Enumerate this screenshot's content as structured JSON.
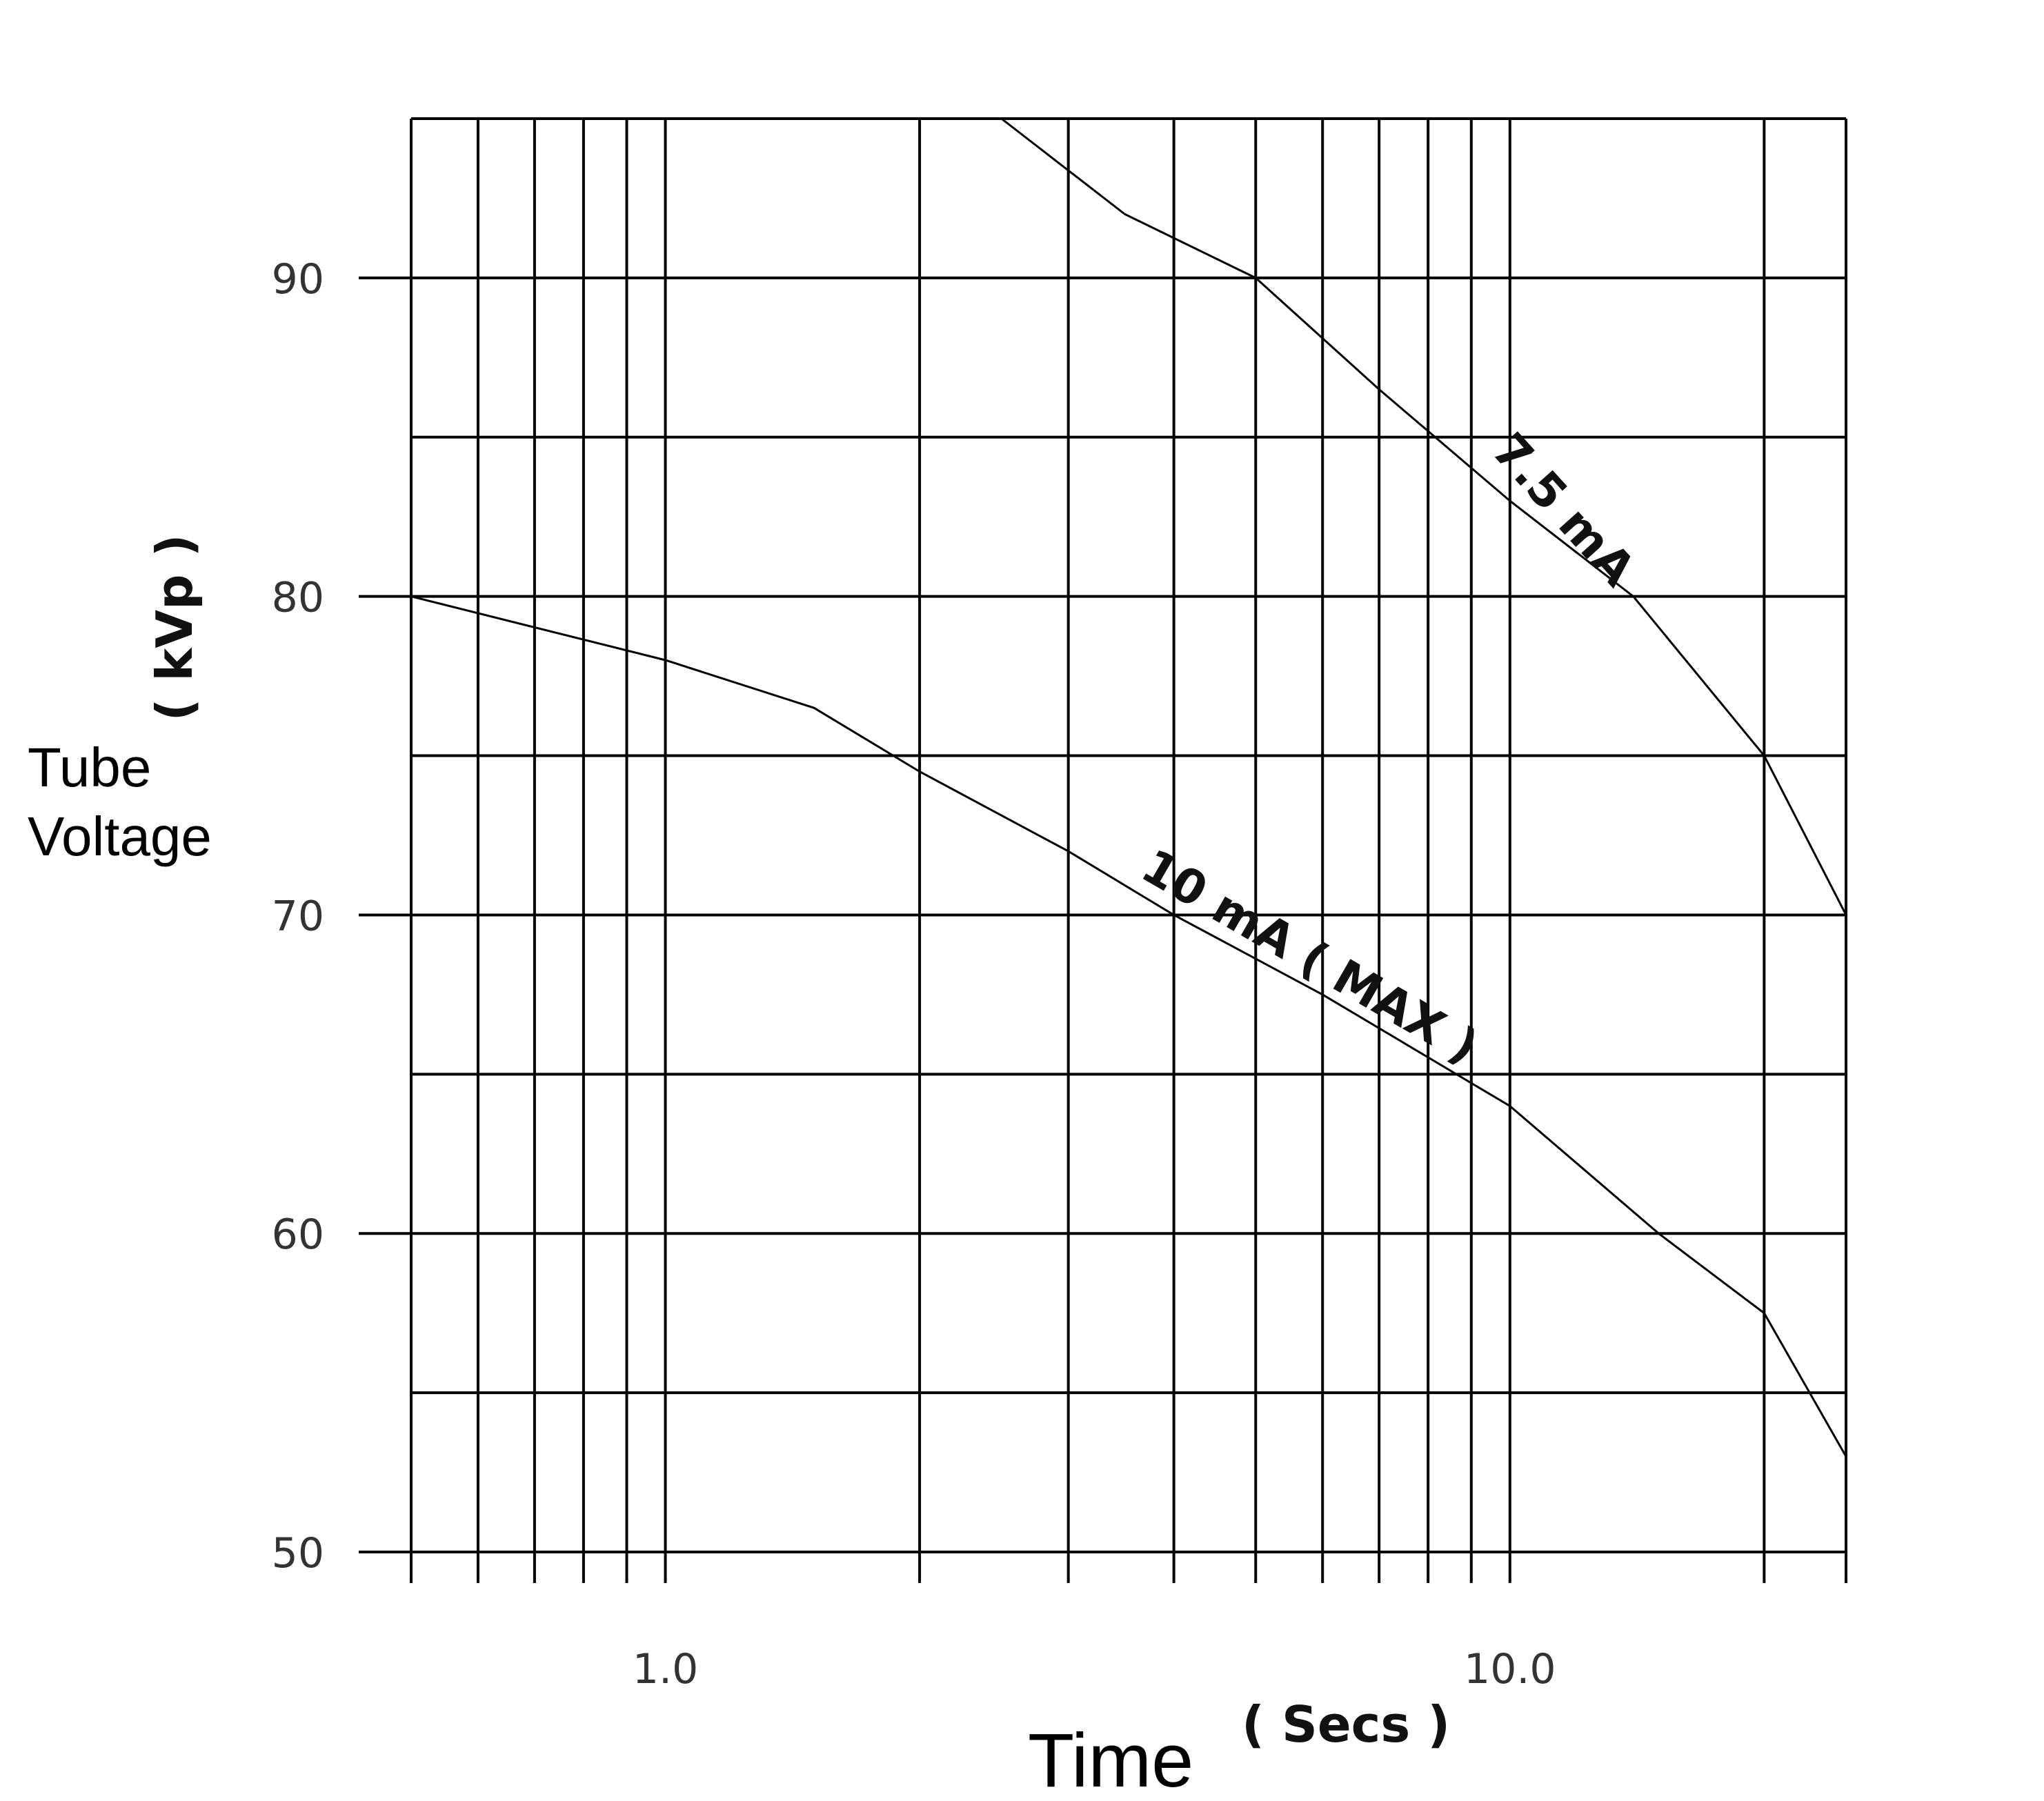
{
  "chart_data": {
    "type": "line",
    "xscale": "log",
    "xlim": [
      0.5,
      25
    ],
    "ylim": [
      50,
      95
    ],
    "x_ticks": [
      {
        "value": 1,
        "label": "1.0"
      },
      {
        "value": 10,
        "label": "10.0"
      }
    ],
    "y_ticks": [
      {
        "value": 90,
        "label": "90"
      },
      {
        "value": 80,
        "label": "80"
      },
      {
        "value": 70,
        "label": "70"
      },
      {
        "value": 60,
        "label": "60"
      },
      {
        "value": 50,
        "label": "50"
      }
    ],
    "grid": true,
    "xlabel": "Time",
    "xunit": "( Secs )",
    "ylabel_line1": "Tube",
    "ylabel_line2": "Voltage",
    "yunit": "( kVp )",
    "series": [
      {
        "name": "7.5 mA",
        "x": [
          2.5,
          3.5,
          5.0,
          7.0,
          10.0,
          14.0,
          20.0,
          25.0
        ],
        "y": [
          95.0,
          92.0,
          90.0,
          86.5,
          83.0,
          80.0,
          75.0,
          70.0
        ]
      },
      {
        "name": "10 mA ( MAX )",
        "x": [
          0.5,
          1.0,
          1.5,
          2.0,
          3.0,
          4.0,
          6.0,
          10.0,
          15.0,
          20.0,
          25.0
        ],
        "y": [
          80.0,
          78.0,
          76.5,
          74.5,
          72.0,
          70.0,
          67.5,
          64.0,
          60.0,
          57.5,
          53.0
        ]
      }
    ]
  }
}
